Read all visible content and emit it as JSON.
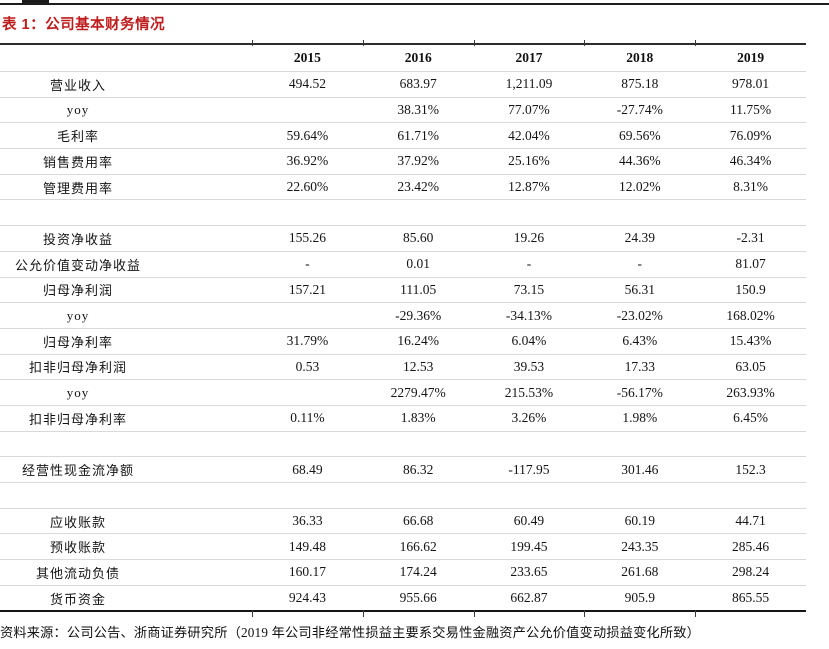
{
  "page": {
    "title": "表 1：公司基本财务情况",
    "title_color": "#bf1d1d",
    "source_note": "资料来源：公司公告、浙商证券研究所（2019 年公司非经常性损益主要系交易性金融资产公允价值变动损益变化所致）"
  },
  "table": {
    "columns": [
      "2015",
      "2016",
      "2017",
      "2018",
      "2019"
    ],
    "rows": [
      {
        "label": "营业收入",
        "values": [
          "494.52",
          "683.97",
          "1,211.09",
          "875.18",
          "978.01"
        ]
      },
      {
        "label": "yoy",
        "values": [
          "",
          "38.31%",
          "77.07%",
          "-27.74%",
          "11.75%"
        ]
      },
      {
        "label": "毛利率",
        "values": [
          "59.64%",
          "61.71%",
          "42.04%",
          "69.56%",
          "76.09%"
        ]
      },
      {
        "label": "销售费用率",
        "values": [
          "36.92%",
          "37.92%",
          "25.16%",
          "44.36%",
          "46.34%"
        ]
      },
      {
        "label": "管理费用率",
        "values": [
          "22.60%",
          "23.42%",
          "12.87%",
          "12.02%",
          "8.31%"
        ]
      },
      {
        "label": "",
        "values": [
          "",
          "",
          "",
          "",
          ""
        ]
      },
      {
        "label": "投资净收益",
        "values": [
          "155.26",
          "85.60",
          "19.26",
          "24.39",
          "-2.31"
        ]
      },
      {
        "label": "公允价值变动净收益",
        "values": [
          "-",
          "0.01",
          "-",
          "-",
          "81.07"
        ]
      },
      {
        "label": "归母净利润",
        "values": [
          "157.21",
          "111.05",
          "73.15",
          "56.31",
          "150.9"
        ]
      },
      {
        "label": "yoy",
        "values": [
          "",
          "-29.36%",
          "-34.13%",
          "-23.02%",
          "168.02%"
        ]
      },
      {
        "label": "归母净利率",
        "values": [
          "31.79%",
          "16.24%",
          "6.04%",
          "6.43%",
          "15.43%"
        ]
      },
      {
        "label": "扣非归母净利润",
        "values": [
          "0.53",
          "12.53",
          "39.53",
          "17.33",
          "63.05"
        ]
      },
      {
        "label": "yoy",
        "values": [
          "",
          "2279.47%",
          "215.53%",
          "-56.17%",
          "263.93%"
        ]
      },
      {
        "label": "扣非归母净利率",
        "values": [
          "0.11%",
          "1.83%",
          "3.26%",
          "1.98%",
          "6.45%"
        ]
      },
      {
        "label": "",
        "values": [
          "",
          "",
          "",
          "",
          ""
        ]
      },
      {
        "label": "经营性现金流净额",
        "values": [
          "68.49",
          "86.32",
          "-117.95",
          "301.46",
          "152.3"
        ]
      },
      {
        "label": "",
        "values": [
          "",
          "",
          "",
          "",
          ""
        ]
      },
      {
        "label": "应收账款",
        "values": [
          "36.33",
          "66.68",
          "60.49",
          "60.19",
          "44.71"
        ]
      },
      {
        "label": "预收账款",
        "values": [
          "149.48",
          "166.62",
          "199.45",
          "243.35",
          "285.46"
        ]
      },
      {
        "label": "其他流动负债",
        "values": [
          "160.17",
          "174.24",
          "233.65",
          "261.68",
          "298.24"
        ]
      },
      {
        "label": "货币资金",
        "values": [
          "924.43",
          "955.66",
          "662.87",
          "905.9",
          "865.55"
        ]
      }
    ]
  }
}
